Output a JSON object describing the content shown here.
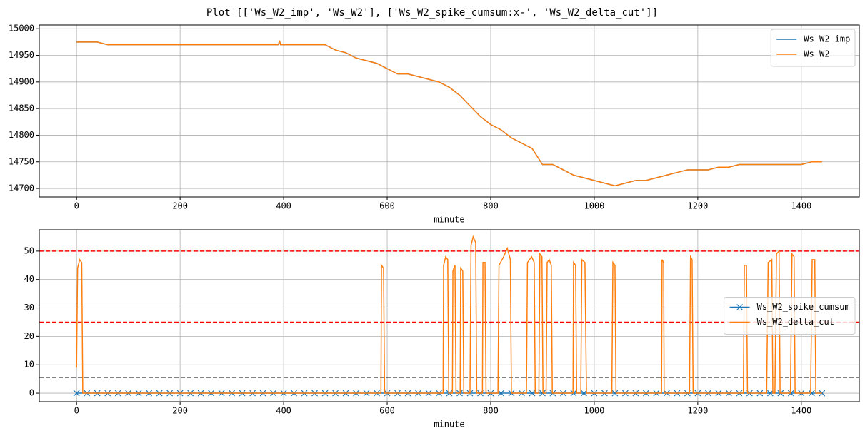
{
  "title": "Plot [['Ws_W2_imp', 'Ws_W2'], ['Ws_W2_spike_cumsum:x-', 'Ws_W2_delta_cut']]",
  "chart_data": [
    {
      "type": "line",
      "xlabel": "minute",
      "xlim": [
        -72,
        1512
      ],
      "ylim": [
        14684,
        15007
      ],
      "xticks": [
        0,
        200,
        400,
        600,
        800,
        1000,
        1200,
        1400
      ],
      "yticks": [
        14700,
        14750,
        14800,
        14850,
        14900,
        14950,
        15000
      ],
      "grid": true,
      "legend": "upper right",
      "series": [
        {
          "name": "Ws_W2_imp",
          "color": "#1f77b4",
          "x": [
            0,
            20,
            40,
            60,
            80,
            200,
            390,
            392,
            394,
            480,
            490,
            500,
            520,
            540,
            560,
            580,
            600,
            620,
            640,
            660,
            680,
            700,
            720,
            740,
            760,
            780,
            800,
            820,
            840,
            860,
            880,
            900,
            920,
            940,
            960,
            980,
            1000,
            1020,
            1040,
            1060,
            1080,
            1100,
            1120,
            1140,
            1160,
            1180,
            1200,
            1220,
            1240,
            1260,
            1280,
            1300,
            1320,
            1340,
            1360,
            1380,
            1400,
            1420,
            1440
          ],
          "values": [
            14975,
            14975,
            14975,
            14970,
            14970,
            14970,
            14970,
            14978,
            14970,
            14970,
            14965,
            14960,
            14955,
            14945,
            14940,
            14935,
            14925,
            14915,
            14915,
            14910,
            14905,
            14900,
            14890,
            14875,
            14855,
            14835,
            14820,
            14810,
            14795,
            14785,
            14775,
            14745,
            14745,
            14735,
            14725,
            14720,
            14715,
            14710,
            14705,
            14710,
            14715,
            14715,
            14720,
            14725,
            14730,
            14735,
            14735,
            14735,
            14740,
            14740,
            14745,
            14745,
            14745,
            14745,
            14745,
            14745,
            14745,
            14750,
            14750
          ]
        },
        {
          "name": "Ws_W2",
          "color": "#ff7f0e",
          "x": [
            0,
            20,
            40,
            60,
            80,
            200,
            390,
            392,
            394,
            480,
            490,
            500,
            520,
            540,
            560,
            580,
            600,
            620,
            640,
            660,
            680,
            700,
            720,
            740,
            760,
            780,
            800,
            820,
            840,
            860,
            880,
            900,
            920,
            940,
            960,
            980,
            1000,
            1020,
            1040,
            1060,
            1080,
            1100,
            1120,
            1140,
            1160,
            1180,
            1200,
            1220,
            1240,
            1260,
            1280,
            1300,
            1320,
            1340,
            1360,
            1380,
            1400,
            1420,
            1440
          ],
          "values": [
            14975,
            14975,
            14975,
            14970,
            14970,
            14970,
            14970,
            14978,
            14970,
            14970,
            14965,
            14960,
            14955,
            14945,
            14940,
            14935,
            14925,
            14915,
            14915,
            14910,
            14905,
            14900,
            14890,
            14875,
            14855,
            14835,
            14820,
            14810,
            14795,
            14785,
            14775,
            14745,
            14745,
            14735,
            14725,
            14720,
            14715,
            14710,
            14705,
            14710,
            14715,
            14715,
            14720,
            14725,
            14730,
            14735,
            14735,
            14735,
            14740,
            14740,
            14745,
            14745,
            14745,
            14745,
            14745,
            14745,
            14745,
            14750,
            14750
          ]
        }
      ]
    },
    {
      "type": "line",
      "xlabel": "minute",
      "xlim": [
        -72,
        1512
      ],
      "ylim": [
        -3,
        57.5
      ],
      "xticks": [
        0,
        200,
        400,
        600,
        800,
        1000,
        1200,
        1400
      ],
      "yticks": [
        0,
        10,
        20,
        30,
        40,
        50
      ],
      "grid": true,
      "legend": "center right",
      "hlines": [
        {
          "value": 50,
          "color": "#ff0000"
        },
        {
          "value": 25,
          "color": "#ff0000"
        },
        {
          "value": 5.6,
          "color": "#000000"
        }
      ],
      "series": [
        {
          "name": "Ws_W2_spike_cumsum",
          "color": "#1f77b4",
          "marker": "x",
          "x": [
            0,
            20,
            40,
            60,
            80,
            100,
            120,
            140,
            160,
            180,
            200,
            220,
            240,
            260,
            280,
            300,
            320,
            340,
            360,
            380,
            400,
            420,
            440,
            460,
            480,
            500,
            520,
            540,
            560,
            580,
            600,
            620,
            640,
            660,
            680,
            700,
            720,
            740,
            760,
            780,
            800,
            820,
            840,
            860,
            880,
            900,
            920,
            940,
            960,
            980,
            1000,
            1020,
            1040,
            1060,
            1080,
            1100,
            1120,
            1140,
            1160,
            1180,
            1200,
            1220,
            1240,
            1260,
            1280,
            1300,
            1320,
            1340,
            1360,
            1380,
            1400,
            1420,
            1440
          ],
          "values": [
            0,
            0,
            0,
            0,
            0,
            0,
            0,
            0,
            0,
            0,
            0,
            0,
            0,
            0,
            0,
            0,
            0,
            0,
            0,
            0,
            0,
            0,
            0,
            0,
            0,
            0,
            0,
            0,
            0,
            0,
            0,
            0,
            0,
            0,
            0,
            0,
            0,
            0,
            0,
            0,
            0,
            0,
            0,
            0,
            0,
            0,
            0,
            0,
            0,
            0,
            0,
            0,
            0,
            0,
            0,
            0,
            0,
            0,
            0,
            0,
            0,
            0,
            0,
            0,
            0,
            0,
            0,
            0,
            0,
            0,
            0,
            0,
            0
          ]
        },
        {
          "name": "Ws_W2_delta_cut",
          "color": "#ff7f0e",
          "x": [
            0,
            2,
            6,
            10,
            12,
            588,
            589,
            593,
            595,
            708,
            709,
            713,
            717,
            719,
            726,
            727,
            731,
            733,
            741,
            742,
            746,
            748,
            760,
            762,
            766,
            771,
            773,
            784,
            785,
            789,
            791,
            814,
            816,
            825,
            832,
            838,
            840,
            869,
            871,
            879,
            884,
            886,
            893,
            895,
            899,
            901,
            907,
            909,
            913,
            917,
            919,
            959,
            960,
            964,
            966,
            974,
            976,
            982,
            985,
            1034,
            1036,
            1040,
            1042,
            1130,
            1131,
            1134,
            1135,
            1184,
            1186,
            1189,
            1191,
            1288,
            1290,
            1294,
            1296,
            1333,
            1336,
            1343,
            1345,
            1349,
            1352,
            1357,
            1359,
            1379,
            1382,
            1386,
            1388,
            1418,
            1421,
            1426,
            1428,
            1440
          ],
          "values": [
            9,
            44,
            47,
            46,
            0,
            0,
            45,
            44,
            0,
            0,
            45,
            48,
            47,
            0,
            0,
            43,
            45,
            0,
            0,
            44,
            43,
            0,
            0,
            52,
            55,
            53,
            0,
            0,
            46,
            46,
            0,
            0,
            45,
            48,
            51,
            47,
            0,
            0,
            46,
            48,
            46,
            0,
            0,
            49,
            48,
            0,
            0,
            46,
            47,
            45,
            0,
            0,
            46,
            45,
            0,
            0,
            47,
            46,
            0,
            0,
            46,
            45,
            0,
            0,
            47,
            46,
            0,
            0,
            48,
            47,
            0,
            0,
            45,
            45,
            0,
            0,
            46,
            47,
            0,
            0,
            49,
            50,
            0,
            0,
            49,
            48,
            0,
            0,
            47,
            47,
            0,
            0
          ]
        }
      ]
    }
  ]
}
